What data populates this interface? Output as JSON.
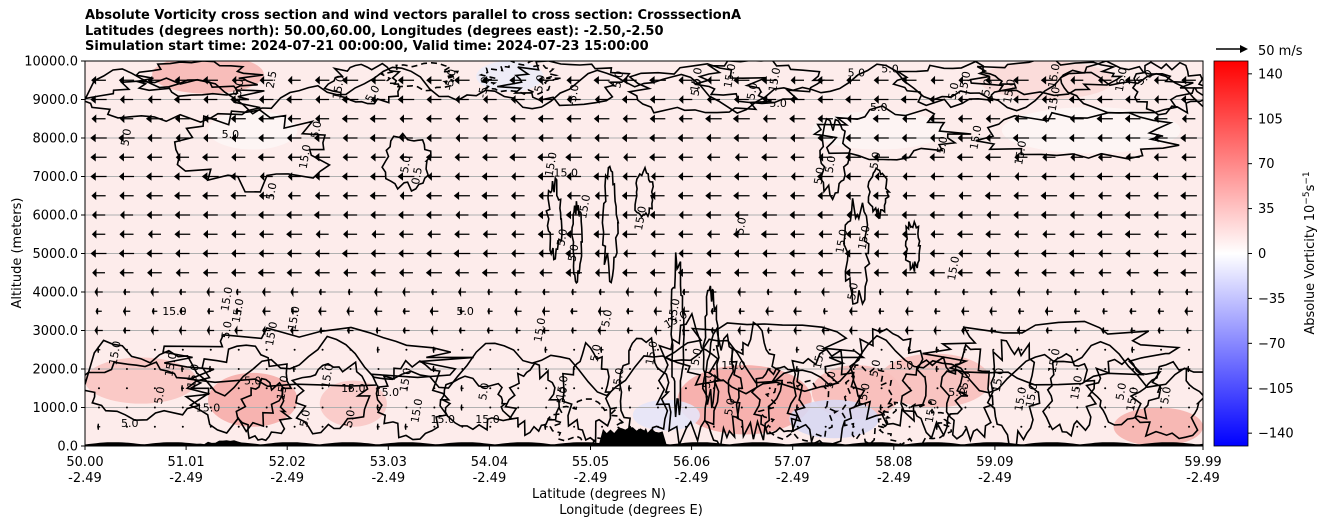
{
  "chart_data": {
    "type": "heatmap",
    "title_lines": [
      "Absolute Vorticity cross section and wind vectors parallel to cross section: CrosssectionA",
      "Latitudes (degrees north): 50.00,60.00, Longitudes (degrees east): -2.50,-2.50",
      "Simulation start time: 2024-07-21 00:00:00, Valid time: 2024-07-23 15:00:00"
    ],
    "ylabel": "Altitude (meters)",
    "xlabel_lat": "Latitude (degrees N)",
    "xlabel_lon": "Longitude (degrees E)",
    "ylim": [
      0,
      10000
    ],
    "yticks": [
      "0.0",
      "1000.0",
      "2000.0",
      "3000.0",
      "4000.0",
      "5000.0",
      "6000.0",
      "7000.0",
      "8000.0",
      "9000.0",
      "10000.0"
    ],
    "xticks_lat": [
      "50.00",
      "51.01",
      "52.02",
      "53.03",
      "54.04",
      "55.05",
      "56.06",
      "57.07",
      "58.08",
      "59.09",
      "59.99"
    ],
    "xticks_lon": [
      "-2.49",
      "-2.49",
      "-2.49",
      "-2.49",
      "-2.49",
      "-2.49",
      "-2.49",
      "-2.49",
      "-2.49",
      "-2.49",
      "-2.49"
    ],
    "grid": "horizontal",
    "colorbar": {
      "label": "Absolue Vorticity 10$^{-5}$s$^{-1}$",
      "label_main": "Absolue Vorticity 10",
      "label_exp1": "−5",
      "label_unit": "s",
      "label_exp2": "−1",
      "range": [
        -150,
        150
      ],
      "ticks": [
        "140",
        "105",
        "70",
        "35",
        "0",
        "−35",
        "−70",
        "−105",
        "−140"
      ],
      "colormap": "bwr"
    },
    "quiver_key": {
      "label": "50 m/s",
      "speed": 50
    },
    "contour_labels": [
      {
        "t": "15.0",
        "x": 0.03,
        "z": 2400,
        "r": -80
      },
      {
        "t": "15.0",
        "x": 0.14,
        "z": 9200,
        "r": -80
      },
      {
        "t": "5.0",
        "x": 0.04,
        "z": 8000,
        "r": -80
      },
      {
        "t": "5.0",
        "x": 0.13,
        "z": 8000,
        "r": 0
      },
      {
        "t": "2.5",
        "x": 0.17,
        "z": 9500,
        "r": -80
      },
      {
        "t": "15.0",
        "x": 0.23,
        "z": 9300,
        "r": -80
      },
      {
        "t": "5.0",
        "x": 0.26,
        "z": 9100,
        "r": -60
      },
      {
        "t": "5.0",
        "x": 0.21,
        "z": 8200,
        "r": -80
      },
      {
        "t": "5.0",
        "x": 0.41,
        "z": 9400,
        "r": -80
      },
      {
        "t": "-5.0",
        "x": 0.36,
        "z": 9300,
        "r": -80
      },
      {
        "t": "-5.0",
        "x": 0.33,
        "z": 9500,
        "r": -80
      },
      {
        "t": "-5.0",
        "x": 0.44,
        "z": 9100,
        "r": -80
      },
      {
        "t": "15.0",
        "x": 0.55,
        "z": 9500,
        "r": -80
      },
      {
        "t": "5.0",
        "x": 0.6,
        "z": 9200,
        "r": -80
      },
      {
        "t": "5.0",
        "x": 0.62,
        "z": 8800,
        "r": 0
      },
      {
        "t": "15.0",
        "x": 0.62,
        "z": 9500,
        "r": -80
      },
      {
        "t": "5.0",
        "x": 0.55,
        "z": 9300,
        "r": -80
      },
      {
        "t": "5.0",
        "x": 0.71,
        "z": 8700,
        "r": 0
      },
      {
        "t": "5.0",
        "x": 0.78,
        "z": 9200,
        "r": -80
      },
      {
        "t": "5.0",
        "x": 0.81,
        "z": 9300,
        "r": -80
      },
      {
        "t": "15.0",
        "x": 0.83,
        "z": 9200,
        "r": -80
      },
      {
        "t": "5.0",
        "x": 0.77,
        "z": 7800,
        "r": -80
      },
      {
        "t": "15.0",
        "x": 0.8,
        "z": 8000,
        "r": -80
      },
      {
        "t": "15.0",
        "x": 0.84,
        "z": 7600,
        "r": -80
      },
      {
        "t": "5.0",
        "x": 0.72,
        "z": 9700,
        "r": 0
      },
      {
        "t": "15.0",
        "x": 0.87,
        "z": 9600,
        "r": -80
      },
      {
        "t": "5.0",
        "x": 0.95,
        "z": 9500,
        "r": -40
      },
      {
        "t": "15.0",
        "x": 0.93,
        "z": 9500,
        "r": -80
      },
      {
        "t": "5.0",
        "x": 0.69,
        "z": 9600,
        "r": 0
      },
      {
        "t": "15.0",
        "x": 0.87,
        "z": 9000,
        "r": -80
      },
      {
        "t": "15.0",
        "x": 0.79,
        "z": 9400,
        "r": -80
      },
      {
        "t": "15.0",
        "x": 0.58,
        "z": 9600,
        "r": -80
      },
      {
        "t": "5.0",
        "x": 0.48,
        "z": 9500,
        "r": -80
      },
      {
        "t": "5.0",
        "x": 0.29,
        "z": 7300,
        "r": -80
      },
      {
        "t": "0.5",
        "x": 0.3,
        "z": 7000,
        "r": -80
      },
      {
        "t": "5.0",
        "x": 0.17,
        "z": 6600,
        "r": -80
      },
      {
        "t": "15.0",
        "x": 0.42,
        "z": 7300,
        "r": -80
      },
      {
        "t": "15.0",
        "x": 0.43,
        "z": 7000,
        "r": 0
      },
      {
        "t": "15.0",
        "x": 0.45,
        "z": 6200,
        "r": -80
      },
      {
        "t": "15.0",
        "x": 0.5,
        "z": 5900,
        "r": -80
      },
      {
        "t": "5.0",
        "x": 0.43,
        "z": 5400,
        "r": -80
      },
      {
        "t": "5.0",
        "x": 0.44,
        "z": 5000,
        "r": -80
      },
      {
        "t": "5.0",
        "x": 0.59,
        "z": 5700,
        "r": -80
      },
      {
        "t": "15.0",
        "x": 0.68,
        "z": 5300,
        "r": -80
      },
      {
        "t": "15.0",
        "x": 0.7,
        "z": 5400,
        "r": -80
      },
      {
        "t": "5.0",
        "x": 0.66,
        "z": 7000,
        "r": -80
      },
      {
        "t": "5.0",
        "x": 0.67,
        "z": 7300,
        "r": -80
      },
      {
        "t": "5.0",
        "x": 0.71,
        "z": 7400,
        "r": -80
      },
      {
        "t": "5.0",
        "x": 0.69,
        "z": 4000,
        "r": -80
      },
      {
        "t": "15.0",
        "x": 0.13,
        "z": 3800,
        "r": -80
      },
      {
        "t": "15.0",
        "x": 0.14,
        "z": 3500,
        "r": -80
      },
      {
        "t": "15.0",
        "x": 0.08,
        "z": 3400,
        "r": 0
      },
      {
        "t": "15.0",
        "x": 0.19,
        "z": 3300,
        "r": -80
      },
      {
        "t": "5.0",
        "x": 0.34,
        "z": 3400,
        "r": 0
      },
      {
        "t": "5.0",
        "x": 0.47,
        "z": 3300,
        "r": -80
      },
      {
        "t": "15.0",
        "x": 0.53,
        "z": 3200,
        "r": -30
      },
      {
        "t": "5.0",
        "x": 0.13,
        "z": 3000,
        "r": -80
      },
      {
        "t": "15.0",
        "x": 0.17,
        "z": 2900,
        "r": -80
      },
      {
        "t": "15.0",
        "x": 0.08,
        "z": 2100,
        "r": -80
      },
      {
        "t": "15.0",
        "x": 0.1,
        "z": 1800,
        "r": -80
      },
      {
        "t": "5.0",
        "x": 0.15,
        "z": 1600,
        "r": 0
      },
      {
        "t": "15.0",
        "x": 0.18,
        "z": 1500,
        "r": -80
      },
      {
        "t": "15.0",
        "x": 0.22,
        "z": 1800,
        "r": -80
      },
      {
        "t": "15.0",
        "x": 0.24,
        "z": 1400,
        "r": 0
      },
      {
        "t": "15.0",
        "x": 0.27,
        "z": 1300,
        "r": 0
      },
      {
        "t": "15.0",
        "x": 0.29,
        "z": 1700,
        "r": -80
      },
      {
        "t": "5.0",
        "x": 0.07,
        "z": 1300,
        "r": -80
      },
      {
        "t": "15.0",
        "x": 0.11,
        "z": 900,
        "r": 0
      },
      {
        "t": "5.0",
        "x": 0.04,
        "z": 500,
        "r": 0
      },
      {
        "t": "5.0",
        "x": 0.2,
        "z": 700,
        "r": -80
      },
      {
        "t": "5.0",
        "x": 0.24,
        "z": 700,
        "r": -80
      },
      {
        "t": "15.0",
        "x": 0.3,
        "z": 900,
        "r": -80
      },
      {
        "t": "15.0",
        "x": 0.32,
        "z": 600,
        "r": 0
      },
      {
        "t": "15.0",
        "x": 0.36,
        "z": 600,
        "r": 0
      },
      {
        "t": "5.0",
        "x": 0.36,
        "z": 1400,
        "r": -80
      },
      {
        "t": "5.0",
        "x": 0.43,
        "z": 1300,
        "r": -80
      },
      {
        "t": "15.0",
        "x": 0.48,
        "z": 1700,
        "r": -80
      },
      {
        "t": "5.0",
        "x": 0.46,
        "z": 2400,
        "r": -80
      },
      {
        "t": "15.0",
        "x": 0.51,
        "z": 2400,
        "r": -80
      },
      {
        "t": "5.0",
        "x": 0.55,
        "z": 2300,
        "r": -80
      },
      {
        "t": "5.0",
        "x": 0.56,
        "z": 1700,
        "r": -80
      },
      {
        "t": "15.0",
        "x": 0.58,
        "z": 2000,
        "r": 0
      },
      {
        "t": "5.0",
        "x": 0.58,
        "z": 1000,
        "r": -80
      },
      {
        "t": "15.0",
        "x": 0.66,
        "z": 2300,
        "r": -80
      },
      {
        "t": "5.0",
        "x": 0.67,
        "z": 1700,
        "r": -80
      },
      {
        "t": "5.0",
        "x": 0.71,
        "z": 2000,
        "r": -80
      },
      {
        "t": "15.0",
        "x": 0.7,
        "z": 1300,
        "r": -80
      },
      {
        "t": "15.0",
        "x": 0.73,
        "z": 2000,
        "r": 0
      },
      {
        "t": "15.0",
        "x": 0.76,
        "z": 900,
        "r": -80
      },
      {
        "t": "5.0",
        "x": 0.78,
        "z": 1300,
        "r": 0
      },
      {
        "t": "15.0",
        "x": 0.79,
        "z": 1600,
        "r": -80
      },
      {
        "t": "15.0",
        "x": 0.82,
        "z": 1700,
        "r": -80
      },
      {
        "t": "15.0",
        "x": 0.87,
        "z": 2200,
        "r": -80
      },
      {
        "t": "15.0",
        "x": 0.85,
        "z": 1300,
        "r": -80
      },
      {
        "t": "15.0",
        "x": 0.89,
        "z": 1500,
        "r": -80
      },
      {
        "t": "5.0",
        "x": 0.93,
        "z": 1400,
        "r": -80
      },
      {
        "t": "15.0",
        "x": 0.94,
        "z": 1200,
        "r": -80
      },
      {
        "t": "5.0",
        "x": 0.97,
        "z": 1300,
        "r": -80
      },
      {
        "t": "15.0",
        "x": 0.84,
        "z": 1200,
        "r": -80
      },
      {
        "t": "15.0",
        "x": 0.53,
        "z": 3500,
        "r": -80
      },
      {
        "t": "15.0",
        "x": 0.43,
        "z": 1500,
        "r": -80
      },
      {
        "t": "15.0",
        "x": 0.41,
        "z": 3000,
        "r": -80
      },
      {
        "t": "15.0",
        "x": 0.78,
        "z": 4600,
        "r": -80
      },
      {
        "t": "15.0",
        "x": 0.2,
        "z": 7500,
        "r": -80
      }
    ]
  }
}
